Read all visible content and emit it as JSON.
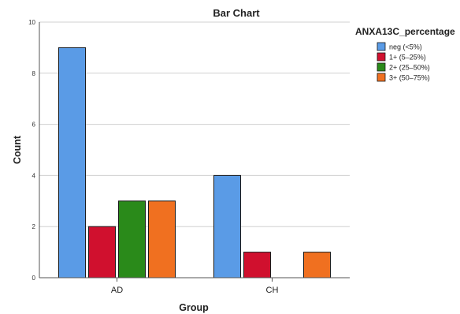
{
  "chart_data": {
    "type": "bar",
    "title": "Bar Chart",
    "xlabel": "Group",
    "ylabel": "Count",
    "categories": [
      "AD",
      "CH"
    ],
    "series": [
      {
        "name": "neg (<5%)",
        "values": [
          9,
          4
        ],
        "color": "#5a9be6"
      },
      {
        "name": "1+ (5–25%)",
        "values": [
          2,
          1
        ],
        "color": "#d0102e"
      },
      {
        "name": "2+ (25–50%)",
        "values": [
          3,
          0
        ],
        "color": "#2a8a1a"
      },
      {
        "name": "3+ (50–75%)",
        "values": [
          3,
          1
        ],
        "color": "#f07020"
      }
    ],
    "ylim": [
      0,
      10
    ],
    "yticks": [
      "0",
      "2",
      "4",
      "6",
      "8",
      "10"
    ],
    "grid": true,
    "legend": {
      "title": "ANXA13C_percentage",
      "position": "top-right"
    }
  }
}
